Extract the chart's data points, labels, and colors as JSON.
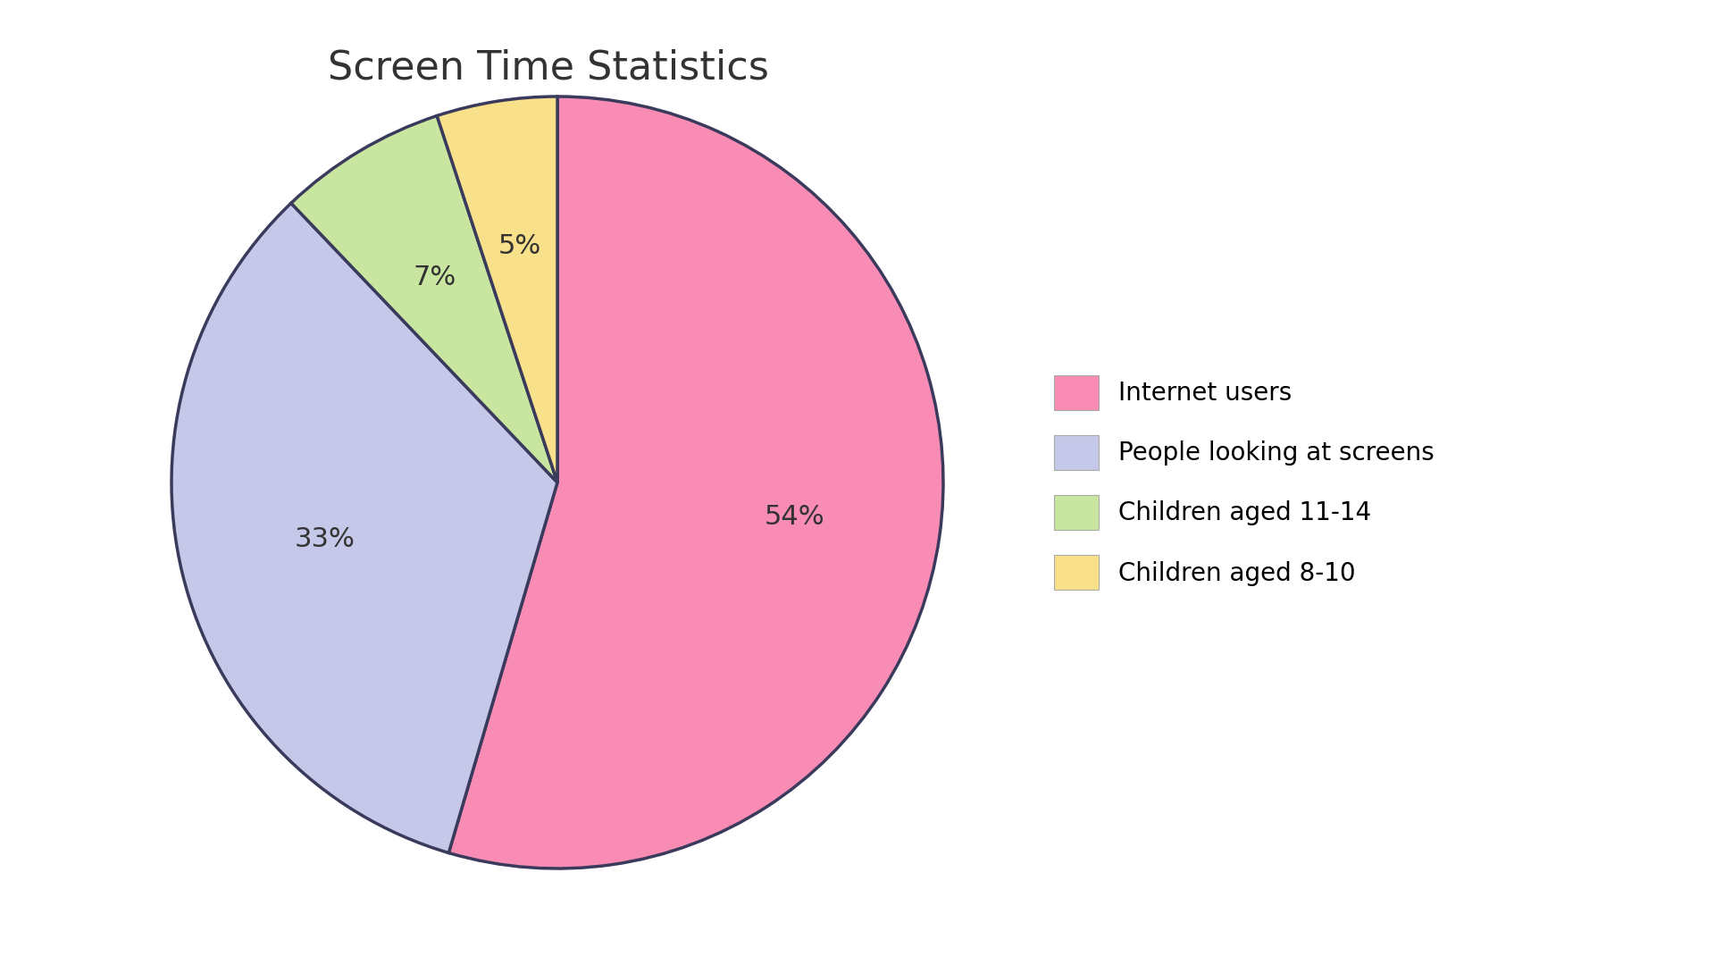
{
  "title": "Screen Time Statistics",
  "slices": [
    54,
    33,
    7,
    5
  ],
  "labels": [
    "Internet users",
    "People looking at screens",
    "Children aged 11-14",
    "Children aged 8-10"
  ],
  "colors": [
    "#F98CB4",
    "#C5C8E8",
    "#C8E6A0",
    "#F9E08A"
  ],
  "edge_color": "#3A3A5C",
  "edge_width": 2.5,
  "pct_labels": [
    "54%",
    "33%",
    "7%",
    "5%"
  ],
  "start_angle": 90,
  "title_fontsize": 32,
  "pct_fontsize": 22,
  "legend_fontsize": 20,
  "background_color": "#FFFFFF",
  "title_color": "#333333"
}
